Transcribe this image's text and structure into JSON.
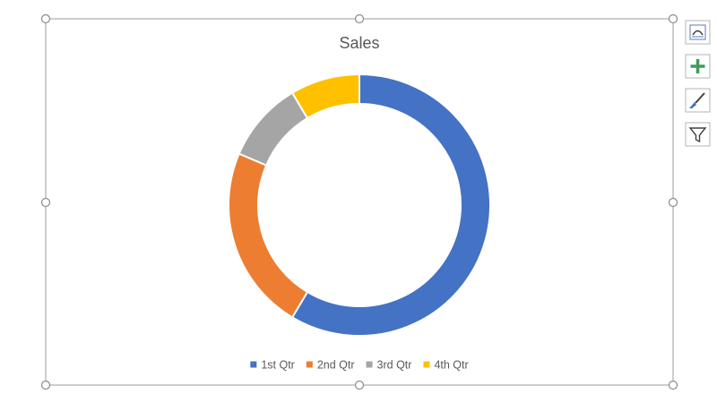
{
  "chart_data": {
    "type": "doughnut",
    "title": "Sales",
    "categories": [
      "1st Qtr",
      "2nd Qtr",
      "3rd Qtr",
      "4th Qtr"
    ],
    "values": [
      8.2,
      3.2,
      1.4,
      1.2
    ],
    "colors": [
      "#4472c4",
      "#ed7d31",
      "#a5a5a5",
      "#ffc000"
    ],
    "legend": "bottom"
  }
}
